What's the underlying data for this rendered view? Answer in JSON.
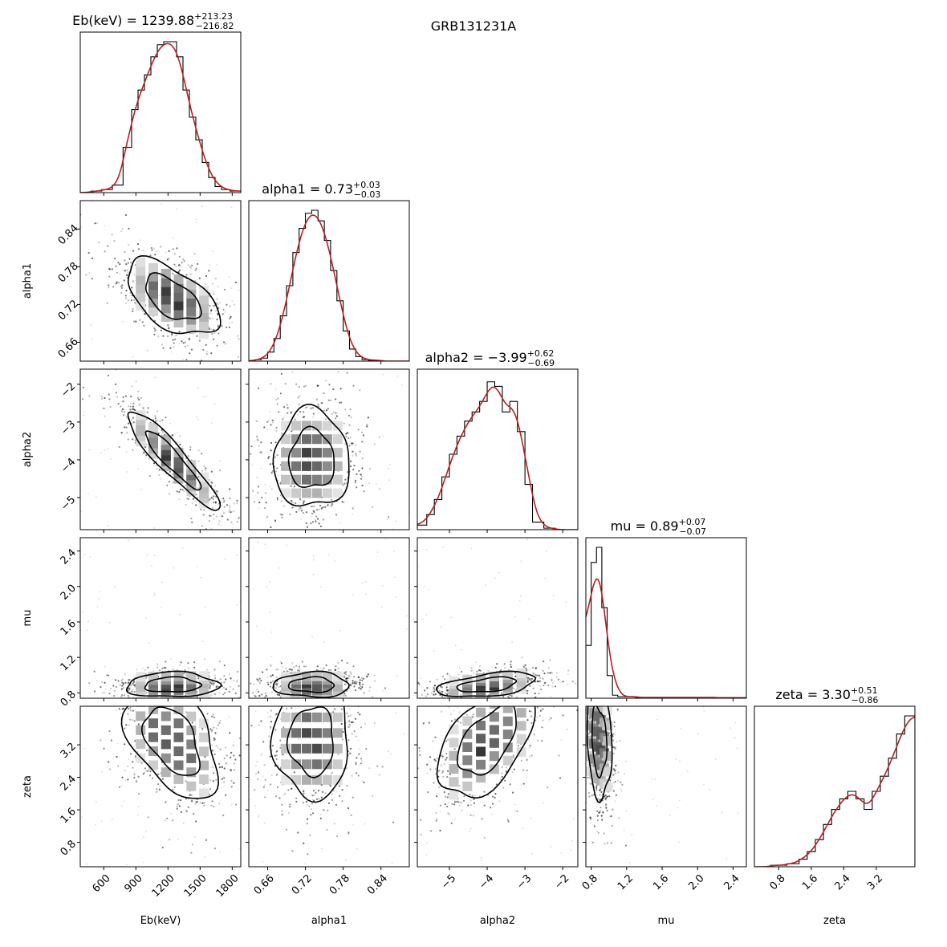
{
  "figure_title": "GRB131231A",
  "chart_data": {
    "type": "corner",
    "title": "GRB131231A",
    "params": [
      {
        "name": "Eb(keV)",
        "median": 1239.88,
        "err_plus": 213.23,
        "err_minus": 216.82,
        "title_main": "Eb(keV) = 1239.88",
        "title_plus": "+213.23",
        "title_minus": "−216.82",
        "range": [
          380,
          1880
        ],
        "ticks": [
          600,
          900,
          1200,
          1500,
          1800
        ],
        "ticklabels": [
          "600",
          "900",
          "1200",
          "1500",
          "1800"
        ],
        "std": 215
      },
      {
        "name": "alpha1",
        "median": 0.73,
        "err_plus": 0.03,
        "err_minus": 0.03,
        "title_main": "alpha1 = 0.73",
        "title_plus": "+0.03",
        "title_minus": "−0.03",
        "range": [
          0.63,
          0.885
        ],
        "ticks": [
          0.66,
          0.72,
          0.78,
          0.84
        ],
        "ticklabels": [
          "0.66",
          "0.72",
          "0.78",
          "0.84"
        ],
        "std": 0.03
      },
      {
        "name": "alpha2",
        "median": -3.99,
        "err_plus": 0.62,
        "err_minus": 0.69,
        "title_main": "alpha2 = −3.99",
        "title_plus": "+0.62",
        "title_minus": "−0.69",
        "range": [
          -5.85,
          -1.6
        ],
        "ticks": [
          -5,
          -4,
          -3,
          -2
        ],
        "ticklabels": [
          "−5",
          "−4",
          "−3",
          "−2"
        ],
        "std": 0.65
      },
      {
        "name": "mu",
        "median": 0.89,
        "err_plus": 0.07,
        "err_minus": 0.07,
        "title_main": "mu = 0.89",
        "title_plus": "+0.07",
        "title_minus": "−0.07",
        "range": [
          0.74,
          2.55
        ],
        "ticks": [
          0.8,
          1.2,
          1.6,
          2.0,
          2.4
        ],
        "ticklabels": [
          "0.8",
          "1.2",
          "1.6",
          "2.0",
          "2.4"
        ],
        "std": 0.07
      },
      {
        "name": "zeta",
        "median": 3.3,
        "err_plus": 0.51,
        "err_minus": 0.86,
        "title_main": "zeta = 3.30",
        "title_plus": "+0.51",
        "title_minus": "−0.86",
        "range": [
          0.2,
          4.15
        ],
        "ticks": [
          0.8,
          1.6,
          2.4,
          3.2
        ],
        "ticklabels": [
          "0.8",
          "1.6",
          "2.4",
          "3.2"
        ],
        "std": 0.7
      }
    ],
    "hist_1d": {
      "Eb(keV)": {
        "edges": [
          380,
          480,
          580,
          680,
          780,
          860,
          920,
          980,
          1040,
          1100,
          1160,
          1220,
          1280,
          1340,
          1400,
          1460,
          1520,
          1580,
          1640,
          1700,
          1780,
          1880
        ],
        "heights": [
          0.0,
          0.01,
          0.02,
          0.05,
          0.3,
          0.55,
          0.68,
          0.78,
          0.9,
          0.98,
          1.0,
          1.0,
          0.9,
          0.68,
          0.5,
          0.35,
          0.2,
          0.1,
          0.04,
          0.02,
          0.01
        ]
      },
      "alpha1": {
        "edges": [
          0.63,
          0.64,
          0.65,
          0.66,
          0.67,
          0.68,
          0.69,
          0.7,
          0.71,
          0.72,
          0.73,
          0.74,
          0.75,
          0.76,
          0.77,
          0.78,
          0.79,
          0.8,
          0.81,
          0.82,
          0.83,
          0.885
        ],
        "heights": [
          0.0,
          0.01,
          0.02,
          0.06,
          0.15,
          0.3,
          0.5,
          0.72,
          0.88,
          0.98,
          1.0,
          0.93,
          0.8,
          0.6,
          0.4,
          0.2,
          0.08,
          0.03,
          0.01,
          0.005,
          0.0
        ]
      },
      "alpha2": {
        "edges": [
          -5.85,
          -5.6,
          -5.4,
          -5.2,
          -5.0,
          -4.8,
          -4.6,
          -4.4,
          -4.2,
          -4.0,
          -3.8,
          -3.6,
          -3.4,
          -3.2,
          -3.0,
          -2.8,
          -2.5,
          -2.2,
          -1.9,
          -1.6
        ],
        "heights": [
          0.03,
          0.1,
          0.2,
          0.35,
          0.5,
          0.62,
          0.72,
          0.78,
          0.85,
          0.98,
          0.95,
          0.78,
          0.85,
          0.65,
          0.3,
          0.05,
          0.01,
          0.0,
          0.0
        ]
      },
      "mu": {
        "edges": [
          0.74,
          0.8,
          0.86,
          0.92,
          0.98,
          1.04,
          1.1,
          1.3,
          1.6,
          1.9,
          2.2,
          2.55
        ],
        "heights": [
          0.35,
          0.9,
          1.0,
          0.6,
          0.15,
          0.02,
          0.01,
          0.005,
          0.005,
          0.005,
          0.003
        ]
      },
      "zeta": {
        "edges": [
          0.2,
          0.6,
          1.0,
          1.3,
          1.5,
          1.7,
          1.9,
          2.1,
          2.3,
          2.5,
          2.7,
          2.9,
          3.1,
          3.3,
          3.5,
          3.7,
          3.9,
          4.15
        ],
        "heights": [
          0.0,
          0.01,
          0.02,
          0.05,
          0.1,
          0.18,
          0.28,
          0.38,
          0.45,
          0.5,
          0.45,
          0.38,
          0.5,
          0.6,
          0.72,
          0.88,
          1.0
        ]
      }
    },
    "fit_curve_color": "#b22222",
    "hist_color": "#000000",
    "contour_color": "#000000"
  }
}
